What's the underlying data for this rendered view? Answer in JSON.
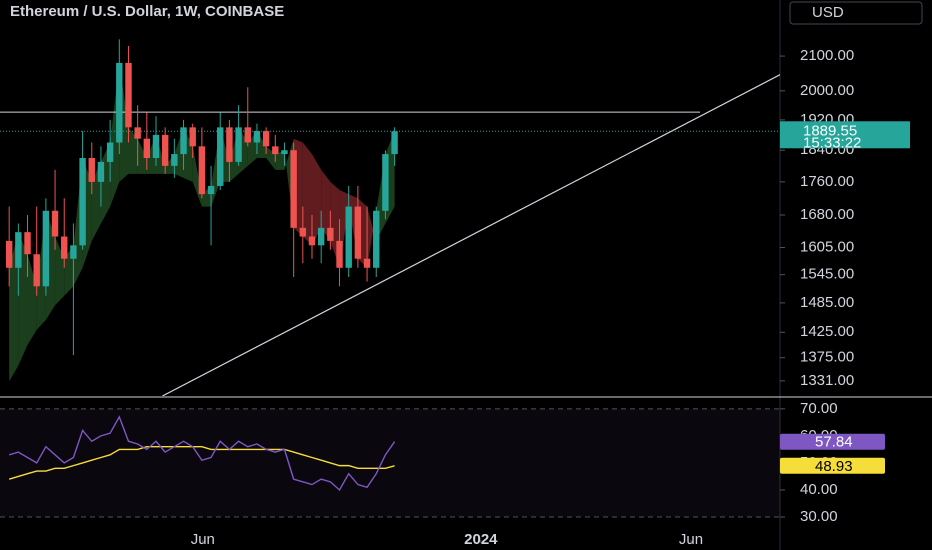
{
  "chart_data": {
    "type": "candlestick",
    "title": "Ethereum / U.S. Dollar, 1W, COINBASE",
    "currency_button": "USD",
    "countdown": "15:33:22",
    "x": [
      0,
      1,
      2,
      3,
      4,
      5,
      6,
      7,
      8,
      9,
      10,
      11,
      12,
      13,
      14,
      15,
      16,
      17,
      18,
      19,
      20,
      21,
      22,
      23,
      24,
      25,
      26,
      27,
      28,
      29,
      30,
      31,
      32,
      33,
      34,
      35,
      36,
      37,
      38,
      39,
      40,
      41,
      42
    ],
    "open": [
      1620,
      1560,
      1640,
      1590,
      1520,
      1690,
      1630,
      1580,
      1610,
      1820,
      1760,
      1810,
      1860,
      2080,
      1900,
      1870,
      1820,
      1880,
      1800,
      1830,
      1900,
      1850,
      1730,
      1750,
      1900,
      1810,
      1900,
      1860,
      1890,
      1850,
      1830,
      1840,
      1650,
      1630,
      1610,
      1650,
      1620,
      1560,
      1700,
      1580,
      1560,
      1690,
      1830
    ],
    "high": [
      1700,
      1660,
      1680,
      1700,
      1720,
      1790,
      1720,
      1660,
      1890,
      1860,
      1850,
      1920,
      2150,
      2130,
      1960,
      1940,
      1930,
      1900,
      1870,
      1920,
      1910,
      1900,
      1800,
      1940,
      1920,
      1960,
      2010,
      1910,
      1900,
      1880,
      1860,
      1860,
      1700,
      1680,
      1690,
      1690,
      1670,
      1750,
      1750,
      1700,
      1700,
      1840,
      1900
    ],
    "low": [
      1520,
      1500,
      1540,
      1500,
      1500,
      1600,
      1560,
      1380,
      1600,
      1730,
      1700,
      1760,
      1830,
      1860,
      1800,
      1790,
      1800,
      1780,
      1770,
      1790,
      1820,
      1720,
      1610,
      1740,
      1760,
      1800,
      1850,
      1830,
      1830,
      1810,
      1800,
      1540,
      1570,
      1580,
      1570,
      1600,
      1520,
      1540,
      1560,
      1530,
      1540,
      1670,
      1800
    ],
    "close": [
      1560,
      1640,
      1590,
      1520,
      1690,
      1630,
      1580,
      1610,
      1820,
      1760,
      1810,
      1860,
      2080,
      1900,
      1870,
      1820,
      1880,
      1800,
      1830,
      1900,
      1850,
      1730,
      1750,
      1900,
      1810,
      1900,
      1860,
      1890,
      1850,
      1830,
      1840,
      1650,
      1630,
      1610,
      1650,
      1620,
      1560,
      1700,
      1580,
      1560,
      1690,
      1830,
      1889.55
    ],
    "up_color": "#26a69a",
    "down_color": "#ef5350",
    "trail": {
      "values": [
        1330,
        1360,
        1400,
        1430,
        1450,
        1480,
        1500,
        1520,
        1560,
        1620,
        1660,
        1700,
        1760,
        1780,
        1780,
        1780,
        1780,
        1780,
        1780,
        1770,
        1760,
        1700,
        1700,
        1760,
        1760,
        1780,
        1800,
        1820,
        1820,
        1790,
        1790,
        1870,
        1860,
        1830,
        1790,
        1760,
        1740,
        1730,
        1720,
        1700,
        1620,
        1660,
        1700
      ],
      "up_color": "#1e4620",
      "down_color": "#6b1f22"
    },
    "hline": 1941,
    "trendline": {
      "x": [
        16.7,
        85.4
      ],
      "y": [
        1303,
        2065
      ]
    },
    "xlim": [
      -1,
      84
    ],
    "xticks": [
      {
        "value": 21.1,
        "label": "Jun"
      },
      {
        "value": 51.4,
        "label": "2024"
      },
      {
        "value": 74.3,
        "label": "Jun"
      }
    ],
    "ylim": [
      1303,
      2272
    ],
    "log_scale": true,
    "yticks": [
      {
        "value": 2100,
        "label": "2100.00"
      },
      {
        "value": 2000,
        "label": "2000.00"
      },
      {
        "value": 1920,
        "label": "1920.00"
      },
      {
        "value": 1840,
        "label": "1840.00"
      },
      {
        "value": 1760,
        "label": "1760.00"
      },
      {
        "value": 1680,
        "label": "1680.00"
      },
      {
        "value": 1605,
        "label": "1605.00"
      },
      {
        "value": 1545,
        "label": "1545.00"
      },
      {
        "value": 1485,
        "label": "1485.00"
      },
      {
        "value": 1425,
        "label": "1425.00"
      },
      {
        "value": 1375,
        "label": "1375.00"
      },
      {
        "value": 1331,
        "label": "1331.00"
      }
    ],
    "indicator": {
      "type": "line",
      "ylim": [
        21.5,
        74
      ],
      "yticks": [
        {
          "value": 70,
          "label": "70.00"
        },
        {
          "value": 60,
          "label": "60.00"
        },
        {
          "value": 50,
          "label": "50.00"
        },
        {
          "value": 40,
          "label": "40.00"
        },
        {
          "value": 30,
          "label": "30.00"
        }
      ],
      "band": [
        30,
        70
      ],
      "series": [
        {
          "color": "#7e57c2",
          "label_text_color": "#ffffff",
          "values": [
            53,
            54,
            52,
            50,
            56,
            53,
            50,
            52,
            62,
            58,
            60,
            61,
            67,
            58,
            57,
            55,
            58,
            54,
            56,
            58,
            56,
            51,
            52,
            58,
            55,
            58,
            56,
            57,
            55,
            54,
            55,
            44,
            43,
            42,
            44,
            43,
            40,
            46,
            42,
            41,
            46,
            53,
            57.84
          ]
        },
        {
          "color": "#f5dd3a",
          "label_text_color": "#000000",
          "values": [
            44,
            45,
            46,
            47,
            47,
            48,
            48,
            49,
            50,
            51,
            52,
            53,
            55,
            55,
            55,
            56,
            56,
            56,
            56,
            56,
            56,
            56,
            55,
            55,
            55,
            55,
            55,
            55,
            55,
            55,
            55,
            54,
            53,
            52,
            51,
            50,
            49,
            49,
            48,
            48,
            48,
            48,
            48.93
          ]
        }
      ]
    }
  }
}
